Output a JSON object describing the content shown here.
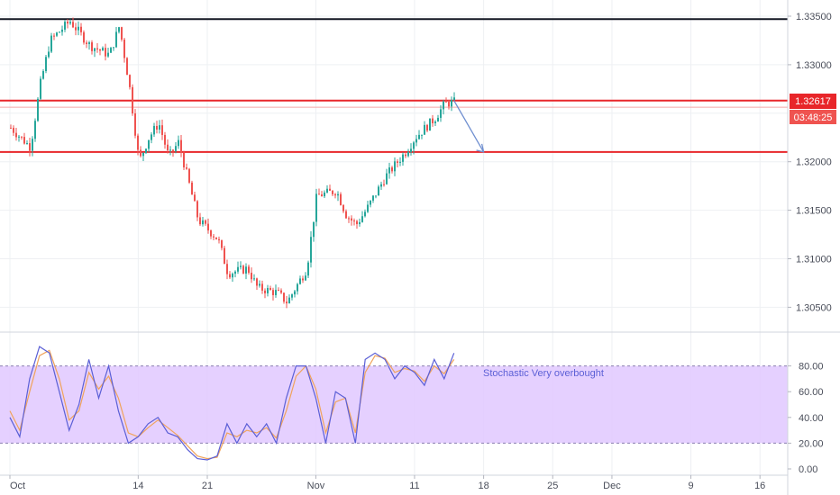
{
  "colors": {
    "up": "#26a69a",
    "down": "#ef5350",
    "level_red": "#e8262a",
    "level_black": "#131722",
    "stoch_k": "#5b5fd6",
    "stoch_d": "#f0a35b",
    "stoch_band": "#e1c8ff",
    "arrow": "#6f8fd0",
    "grid": "#eef0f3",
    "axis_text": "#4a4e5a"
  },
  "price_axis": {
    "ticks": [
      "1.33500",
      "1.33000",
      "1.32000",
      "1.31500",
      "1.31000",
      "1.30500"
    ],
    "current_price": "1.32617",
    "countdown": "03:48:25"
  },
  "stoch_axis": {
    "ticks": [
      "80.00",
      "60.00",
      "40.00",
      "20.00",
      "0.00"
    ]
  },
  "time_axis": {
    "ticks": [
      "Oct",
      "14",
      "21",
      "Nov",
      "11",
      "18",
      "25",
      "Dec",
      "9",
      "16"
    ]
  },
  "annotation": {
    "text": "Stochastic Very overbought"
  },
  "chart_data": [
    {
      "type": "candlestick",
      "title": "",
      "ylim": [
        1.3042,
        1.3363
      ],
      "x_range": [
        "Oct 1",
        "Dec 18"
      ],
      "levels": [
        {
          "price": 1.3347,
          "color": "black"
        },
        {
          "price": 1.3263,
          "color": "red"
        },
        {
          "price": 1.321,
          "color": "red"
        }
      ],
      "current_price": 1.32617,
      "anchors": [
        {
          "x": "Oct 1",
          "price": 1.3235
        },
        {
          "x": "Oct 3",
          "price": 1.3215
        },
        {
          "x": "Oct 4",
          "price": 1.328
        },
        {
          "x": "Oct 5",
          "price": 1.3325
        },
        {
          "x": "Oct 7",
          "price": 1.3345
        },
        {
          "x": "Oct 9",
          "price": 1.332
        },
        {
          "x": "Oct 11",
          "price": 1.331
        },
        {
          "x": "Oct 12",
          "price": 1.334
        },
        {
          "x": "Oct 13",
          "price": 1.328
        },
        {
          "x": "Oct 14",
          "price": 1.32
        },
        {
          "x": "Oct 15",
          "price": 1.3225
        },
        {
          "x": "Oct 16",
          "price": 1.324
        },
        {
          "x": "Oct 17",
          "price": 1.3205
        },
        {
          "x": "Oct 18",
          "price": 1.322
        },
        {
          "x": "Oct 19",
          "price": 1.318
        },
        {
          "x": "Oct 20",
          "price": 1.314
        },
        {
          "x": "Oct 22",
          "price": 1.312
        },
        {
          "x": "Oct 23",
          "price": 1.3085
        },
        {
          "x": "Oct 25",
          "price": 1.309
        },
        {
          "x": "Oct 26",
          "price": 1.307
        },
        {
          "x": "Oct 28",
          "price": 1.3065
        },
        {
          "x": "Oct 29",
          "price": 1.3055
        },
        {
          "x": "Oct 31",
          "price": 1.309
        },
        {
          "x": "Nov 1",
          "price": 1.3165
        },
        {
          "x": "Nov 3",
          "price": 1.317
        },
        {
          "x": "Nov 4",
          "price": 1.3145
        },
        {
          "x": "Nov 5",
          "price": 1.3135
        },
        {
          "x": "Nov 6",
          "price": 1.315
        },
        {
          "x": "Nov 8",
          "price": 1.3185
        },
        {
          "x": "Nov 10",
          "price": 1.321
        },
        {
          "x": "Nov 11",
          "price": 1.3225
        },
        {
          "x": "Nov 12",
          "price": 1.3235
        },
        {
          "x": "Nov 13",
          "price": 1.3245
        },
        {
          "x": "Nov 14",
          "price": 1.326
        },
        {
          "x": "Nov 15",
          "price": 1.32617
        }
      ],
      "projection": {
        "from": [
          "Nov 15",
          1.3263
        ],
        "to": [
          "Nov 18",
          1.321
        ]
      }
    },
    {
      "type": "line",
      "title": "",
      "ylim": [
        0,
        100
      ],
      "overbought_band": [
        20,
        80
      ],
      "x": [
        "Oct 1",
        "Oct 2",
        "Oct 3",
        "Oct 4",
        "Oct 5",
        "Oct 6",
        "Oct 7",
        "Oct 8",
        "Oct 9",
        "Oct 10",
        "Oct 11",
        "Oct 12",
        "Oct 13",
        "Oct 14",
        "Oct 15",
        "Oct 16",
        "Oct 17",
        "Oct 18",
        "Oct 19",
        "Oct 20",
        "Oct 21",
        "Oct 22",
        "Oct 23",
        "Oct 24",
        "Oct 25",
        "Oct 26",
        "Oct 27",
        "Oct 28",
        "Oct 29",
        "Oct 30",
        "Oct 31",
        "Nov 1",
        "Nov 2",
        "Nov 3",
        "Nov 4",
        "Nov 5",
        "Nov 6",
        "Nov 7",
        "Nov 8",
        "Nov 9",
        "Nov 10",
        "Nov 11",
        "Nov 12",
        "Nov 13",
        "Nov 14",
        "Nov 15"
      ],
      "series": [
        {
          "values": [
            40,
            25,
            70,
            95,
            90,
            60,
            30,
            50,
            85,
            55,
            80,
            45,
            20,
            25,
            35,
            40,
            28,
            25,
            15,
            8,
            7,
            10,
            35,
            20,
            35,
            25,
            35,
            20,
            55,
            80,
            80,
            55,
            20,
            60,
            55,
            20,
            85,
            90,
            85,
            70,
            80,
            75,
            65,
            85,
            70,
            90
          ]
        },
        {
          "values": [
            45,
            30,
            60,
            88,
            92,
            70,
            38,
            45,
            75,
            62,
            72,
            55,
            28,
            25,
            32,
            38,
            32,
            26,
            18,
            10,
            8,
            9,
            28,
            25,
            30,
            28,
            32,
            24,
            45,
            72,
            80,
            62,
            28,
            52,
            55,
            28,
            75,
            88,
            86,
            75,
            78,
            76,
            68,
            80,
            74,
            85
          ]
        }
      ]
    }
  ]
}
